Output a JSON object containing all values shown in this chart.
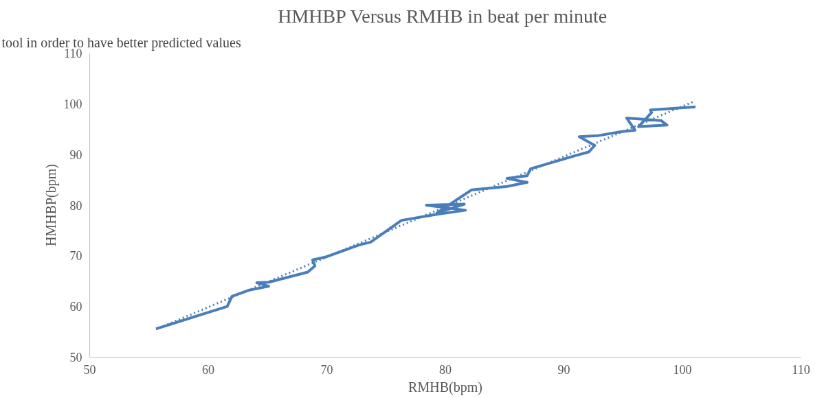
{
  "chart_data": {
    "type": "line",
    "title": "HMHBP  Versus RMHB in beat per minute",
    "xlabel": "RMHB(bpm)",
    "ylabel": "HMHBP(bpm)",
    "annotations": [
      "tool in order to have better predicted values"
    ],
    "xlim": [
      50,
      110
    ],
    "ylim": [
      50,
      110
    ],
    "xticks": [
      50,
      60,
      70,
      80,
      90,
      100,
      110
    ],
    "yticks": [
      50,
      60,
      70,
      80,
      90,
      100,
      110
    ],
    "grid": false,
    "series": [
      {
        "color": "#4a7ebb",
        "line_style": "solid",
        "x": [
          55.6,
          61.6,
          62.0,
          63.4,
          65.1,
          64.1,
          65.1,
          68.4,
          69.0,
          68.8,
          69.8,
          72.8,
          73.7,
          76.3,
          79.3,
          81.7,
          78.4,
          81.6,
          79.3,
          82.2,
          85.2,
          86.9,
          85.2,
          86.9,
          87.2,
          91.0,
          92.1,
          92.6,
          91.3,
          92.8,
          94.8,
          96.0,
          95.3,
          98.2,
          98.7,
          96.3,
          97.4,
          97.3,
          101.1
        ],
        "values": [
          55.6,
          60.0,
          62.0,
          63.2,
          64.0,
          64.7,
          64.8,
          66.8,
          68.0,
          69.2,
          69.7,
          72.2,
          72.7,
          77.0,
          78.2,
          79.0,
          80.0,
          80.2,
          78.5,
          83.0,
          83.7,
          84.5,
          85.3,
          85.8,
          87.2,
          89.8,
          90.5,
          91.8,
          93.5,
          93.7,
          94.5,
          94.8,
          97.2,
          96.7,
          95.8,
          95.5,
          98.3,
          98.8,
          99.4
        ]
      },
      {
        "color": "#4a7ebb",
        "line_style": "dotted",
        "x": [
          55.6,
          101.0
        ],
        "values": [
          55.5,
          100.5
        ]
      }
    ]
  }
}
